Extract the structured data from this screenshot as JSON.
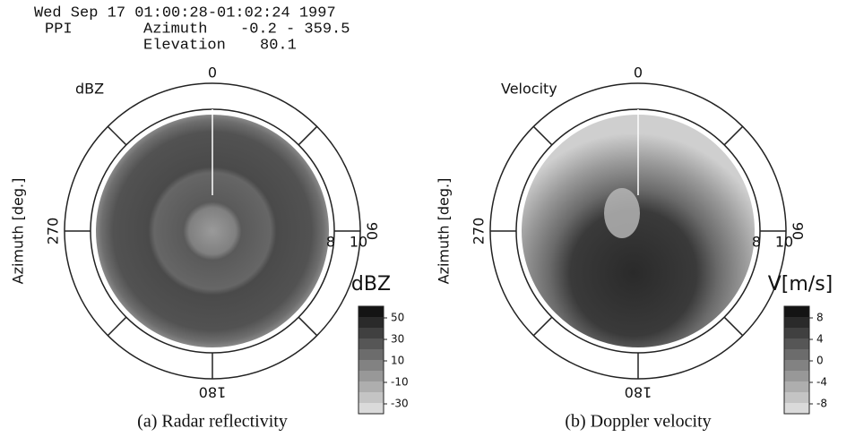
{
  "header": {
    "date_line": "Wed Sep 17 01:00:28-01:02:24 1997",
    "mode": "PPI",
    "azimuth_label": "Azimuth",
    "azimuth_range": "-0.2 - 359.5",
    "elevation_label": "Elevation",
    "elevation_value": "80.1"
  },
  "panels": [
    {
      "field_label": "dBZ",
      "axis_title": "Azimuth [deg.]",
      "azimuth_ticks": [
        "0",
        "90",
        "180",
        "270"
      ],
      "range_ticks": [
        "8",
        "10"
      ],
      "colorbar": {
        "title": "dBZ",
        "ticks": [
          50,
          30,
          10,
          -10,
          -30
        ]
      },
      "caption": "(a) Radar reflectivity"
    },
    {
      "field_label": "Velocity",
      "axis_title": "Azimuth [deg.]",
      "azimuth_ticks": [
        "0",
        "90",
        "180",
        "270"
      ],
      "range_ticks": [
        "8",
        "10"
      ],
      "colorbar": {
        "title": "V[m/s]",
        "ticks": [
          8,
          4,
          0,
          -4,
          -8
        ]
      },
      "caption": "(b) Doppler velocity"
    }
  ]
}
